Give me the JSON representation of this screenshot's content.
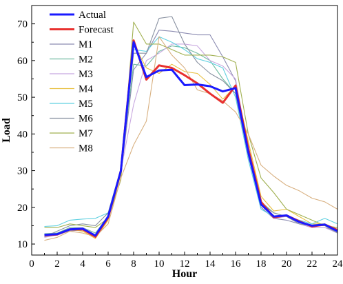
{
  "chart_data": {
    "type": "line",
    "xlabel": "Hour",
    "ylabel": "Load",
    "xlim": [
      0,
      24
    ],
    "ylim": [
      7,
      75
    ],
    "xticks": [
      0,
      2,
      4,
      6,
      8,
      10,
      12,
      14,
      16,
      18,
      20,
      22,
      24
    ],
    "yticks": [
      10,
      20,
      30,
      40,
      50,
      60,
      70
    ],
    "grid": false,
    "legend_position": "top-left",
    "x": [
      1,
      2,
      3,
      4,
      5,
      6,
      7,
      8,
      9,
      10,
      11,
      12,
      13,
      14,
      15,
      16,
      17,
      18,
      19,
      20,
      21,
      22,
      23,
      24
    ],
    "series": [
      {
        "name": "Actual",
        "color": "#1a1aff",
        "values": [
          12.5,
          12.7,
          14.0,
          14.2,
          12.3,
          17.5,
          30.0,
          65.0,
          55.5,
          57.3,
          57.5,
          53.3,
          53.5,
          53.0,
          51.6,
          52.5,
          35.0,
          20.8,
          17.5,
          17.8,
          16.0,
          15.0,
          15.3,
          13.5
        ]
      },
      {
        "name": "Forecast",
        "color": "#e8312f",
        "values": [
          12.4,
          12.6,
          14.0,
          14.0,
          12.0,
          17.2,
          30.0,
          65.5,
          54.8,
          58.7,
          58.0,
          56.0,
          53.8,
          51.0,
          48.5,
          53.2,
          36.0,
          21.5,
          17.3,
          17.8,
          16.2,
          14.8,
          15.3,
          13.8
        ]
      },
      {
        "name": "M1",
        "color": "#8a8ab0",
        "values": [
          12.0,
          12.5,
          13.6,
          13.8,
          12.5,
          17.0,
          29.0,
          57.5,
          62.0,
          68.3,
          68.0,
          67.5,
          67.0,
          67.0,
          61.0,
          54.5,
          35.0,
          20.0,
          17.0,
          16.5,
          15.5,
          14.5,
          14.5,
          13.5
        ]
      },
      {
        "name": "M2",
        "color": "#6fbaa0",
        "values": [
          12.8,
          13.0,
          14.5,
          14.5,
          13.0,
          17.5,
          30.5,
          59.0,
          58.5,
          62.5,
          64.0,
          63.5,
          62.0,
          60.0,
          55.0,
          51.0,
          35.0,
          21.5,
          18.5,
          17.5,
          16.0,
          15.0,
          15.5,
          14.0
        ]
      },
      {
        "name": "M3",
        "color": "#c8a8e0",
        "values": [
          11.8,
          12.5,
          14.2,
          14.5,
          12.5,
          17.0,
          30.0,
          48.0,
          60.0,
          62.0,
          64.5,
          64.5,
          64.0,
          60.0,
          58.5,
          55.0,
          36.0,
          21.5,
          17.0,
          17.5,
          15.5,
          14.5,
          14.5,
          13.0
        ]
      },
      {
        "name": "M4",
        "color": "#e8c040",
        "values": [
          12.5,
          12.5,
          14.0,
          13.5,
          11.5,
          16.5,
          29.0,
          64.5,
          58.0,
          56.5,
          59.0,
          57.0,
          56.5,
          53.5,
          49.5,
          53.0,
          38.0,
          23.0,
          19.0,
          19.5,
          17.5,
          15.5,
          15.5,
          13.5
        ]
      },
      {
        "name": "M5",
        "color": "#5fd0e0",
        "values": [
          14.8,
          15.0,
          16.5,
          16.8,
          17.0,
          18.5,
          30.5,
          63.0,
          62.5,
          66.5,
          65.0,
          63.0,
          60.5,
          59.5,
          58.0,
          50.0,
          33.0,
          19.5,
          17.5,
          17.5,
          16.5,
          15.5,
          17.0,
          15.5
        ]
      },
      {
        "name": "M6",
        "color": "#8890a0",
        "values": [
          12.0,
          13.5,
          15.0,
          15.5,
          15.0,
          18.5,
          30.5,
          62.0,
          62.0,
          71.5,
          72.0,
          64.5,
          59.5,
          56.5,
          54.5,
          51.0,
          34.0,
          21.0,
          18.5,
          17.5,
          15.5,
          15.0,
          15.0,
          13.0
        ]
      },
      {
        "name": "M7",
        "color": "#a0b050",
        "values": [
          14.5,
          14.5,
          15.5,
          15.0,
          14.5,
          17.0,
          27.5,
          70.5,
          64.5,
          64.5,
          63.0,
          61.5,
          61.5,
          61.5,
          61.0,
          59.5,
          40.0,
          28.0,
          24.0,
          19.5,
          18.0,
          16.5,
          15.0,
          14.5
        ]
      },
      {
        "name": "M8",
        "color": "#d8b080",
        "values": [
          11.0,
          11.8,
          13.5,
          13.0,
          12.0,
          15.5,
          28.0,
          37.0,
          43.5,
          66.5,
          61.5,
          58.0,
          52.0,
          51.0,
          49.0,
          46.0,
          40.0,
          31.5,
          28.5,
          26.0,
          24.5,
          22.5,
          21.5,
          19.5
        ]
      }
    ]
  }
}
